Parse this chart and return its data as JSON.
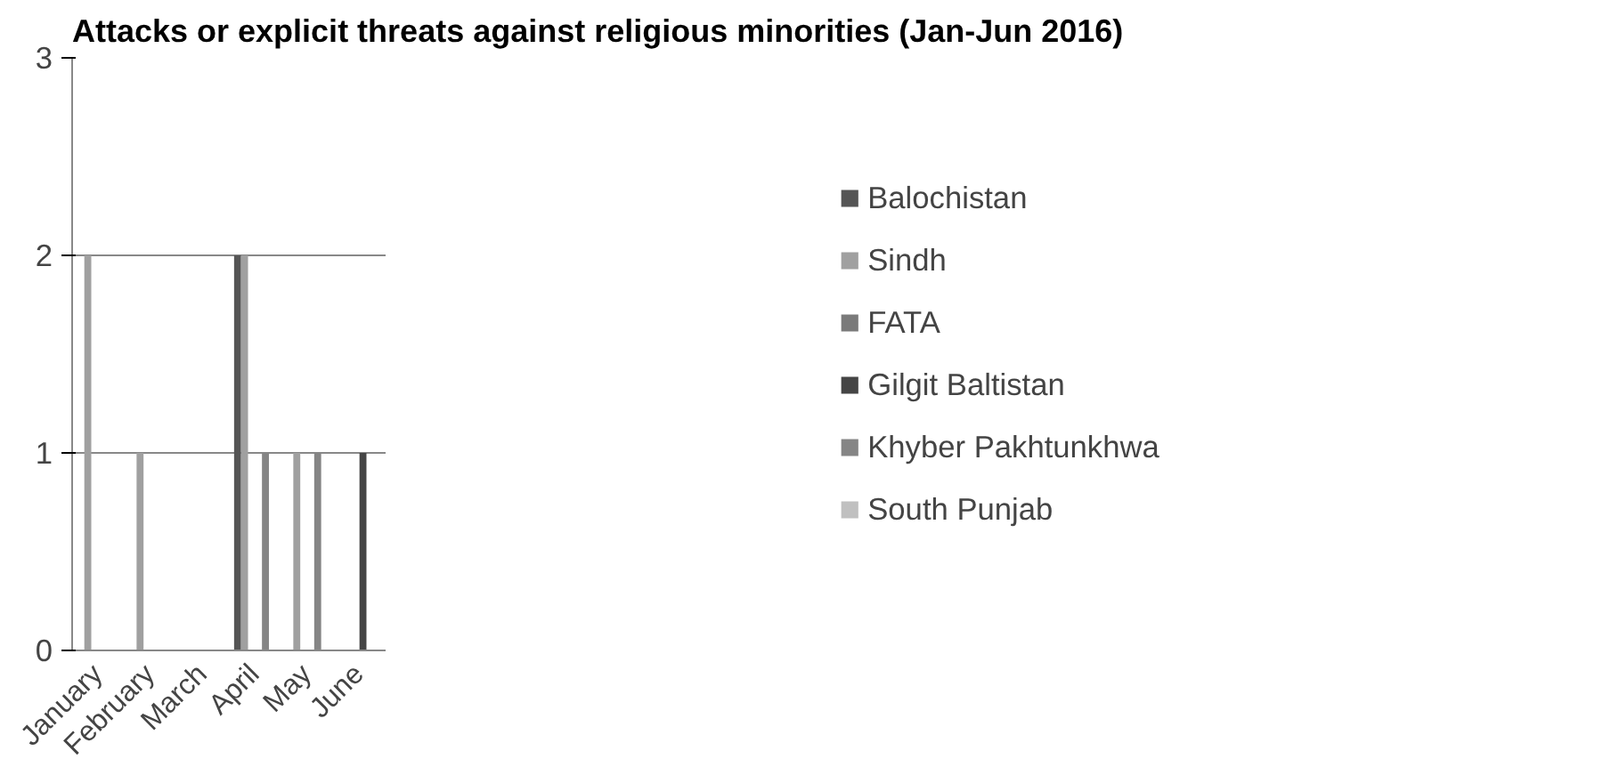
{
  "chart_data": {
    "type": "bar",
    "title": "Attacks or explicit threats against religious minorities (Jan-Jun 2016)",
    "categories": [
      "January",
      "February",
      "March",
      "April",
      "May",
      "June"
    ],
    "series": [
      {
        "name": "Balochistan",
        "color": "#555555",
        "values": [
          0,
          0,
          0,
          2,
          0,
          0
        ]
      },
      {
        "name": "Sindh",
        "color": "#a0a0a0",
        "values": [
          2,
          1,
          0,
          2,
          1,
          0
        ]
      },
      {
        "name": "FATA",
        "color": "#7a7a7a",
        "values": [
          0,
          0,
          0,
          0,
          0,
          0
        ]
      },
      {
        "name": "Gilgit Baltistan",
        "color": "#454545",
        "values": [
          0,
          0,
          0,
          0,
          0,
          1
        ]
      },
      {
        "name": "Khyber Pakhtunkhwa",
        "color": "#858585",
        "values": [
          0,
          0,
          0,
          1,
          1,
          0
        ]
      },
      {
        "name": "South Punjab",
        "color": "#c0c0c0",
        "values": [
          0,
          0,
          0,
          0,
          0,
          0
        ]
      }
    ],
    "ylim": [
      0,
      3
    ],
    "yticks": [
      0,
      1,
      2,
      3
    ],
    "grid": "y",
    "legend": "right"
  }
}
